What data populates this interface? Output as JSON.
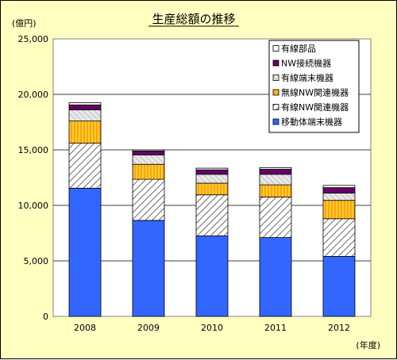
{
  "chart_data": {
    "type": "bar",
    "stacked": true,
    "title": "生産総額の推移",
    "ylabel": "(億円)",
    "xlabel": "(年度)",
    "categories": [
      "2008",
      "2009",
      "2010",
      "2011",
      "2012"
    ],
    "ylim": [
      0,
      25000
    ],
    "yticks": [
      0,
      5000,
      10000,
      15000,
      20000,
      25000
    ],
    "ytick_labels": [
      "0",
      "5,000",
      "10,000",
      "15,000",
      "20,000",
      "25,000"
    ],
    "grid": true,
    "legend_position": "top-right",
    "series": [
      {
        "name": "移動体端末機器",
        "values": [
          11550,
          8650,
          7250,
          7100,
          5400
        ],
        "color": "#3366ff",
        "pattern": "solid"
      },
      {
        "name": "有線NW関連機器",
        "values": [
          4050,
          3700,
          3700,
          3650,
          3400
        ],
        "color": "#ffffff",
        "pattern": "hatch-gray"
      },
      {
        "name": "無線NW関連機器",
        "values": [
          2000,
          1350,
          1050,
          1100,
          1650
        ],
        "color": "#ffcc33",
        "pattern": "vstripe-orange"
      },
      {
        "name": "有線端末機器",
        "values": [
          1000,
          850,
          800,
          950,
          650
        ],
        "color": "#dddddd",
        "pattern": "hatch-light"
      },
      {
        "name": "NW接続機器",
        "values": [
          450,
          350,
          400,
          450,
          500
        ],
        "color": "#660066",
        "pattern": "solid"
      },
      {
        "name": "有線部品",
        "values": [
          200,
          100,
          150,
          150,
          200
        ],
        "color": "#ffffff",
        "pattern": "solid"
      }
    ]
  }
}
